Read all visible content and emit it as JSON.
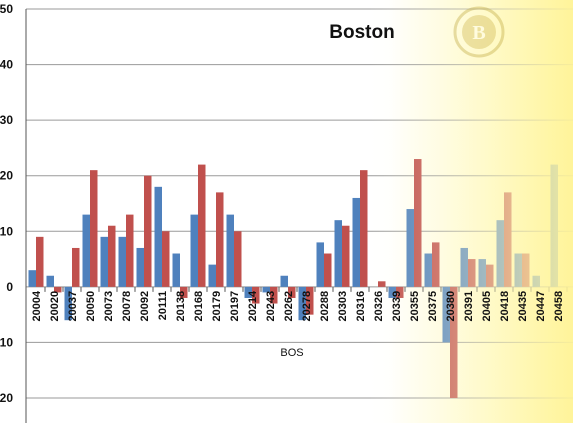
{
  "chart_data": {
    "type": "bar",
    "title": "Boston",
    "xlabel": "BOS",
    "ylabel": "",
    "ylim": [
      -20,
      50
    ],
    "yticks": [
      50,
      40,
      30,
      20,
      10,
      0,
      -10,
      -20
    ],
    "ytick_labels": [
      "50",
      "40",
      "30",
      "20",
      "10",
      "0",
      "10",
      "20"
    ],
    "grid": true,
    "legend": "none",
    "categories": [
      "20004",
      "20020",
      "20037",
      "20050",
      "20073",
      "20078",
      "20092",
      "20111",
      "20138",
      "20168",
      "20179",
      "20197",
      "20214",
      "20243",
      "20262",
      "20278",
      "20288",
      "20303",
      "20316",
      "20326",
      "20339",
      "20355",
      "20375",
      "20380",
      "20391",
      "20405",
      "20418",
      "20435",
      "20447",
      "20458"
    ],
    "series": [
      {
        "color": "#4f81bd",
        "values": [
          3,
          2,
          -6,
          13,
          9,
          9,
          7,
          18,
          6,
          13,
          4,
          13,
          -2,
          -1,
          2,
          -6,
          8,
          12,
          16,
          0,
          -2,
          14,
          6,
          -10,
          7,
          5,
          12,
          6,
          2,
          22
        ]
      },
      {
        "color": "#c0504d",
        "values": [
          9,
          -1,
          7,
          21,
          11,
          13,
          20,
          10,
          -2,
          22,
          17,
          10,
          -3,
          -3,
          -2,
          -5,
          6,
          11,
          21,
          1,
          -2,
          23,
          8,
          -20,
          5,
          4,
          17,
          6,
          0,
          0
        ]
      }
    ]
  },
  "logo": {
    "name": "bruins-logo-watermark",
    "letter": "B"
  },
  "colors": {
    "accent_yellow": "#fff7a8",
    "grid": "#9a9a9a",
    "axis": "#555555"
  }
}
